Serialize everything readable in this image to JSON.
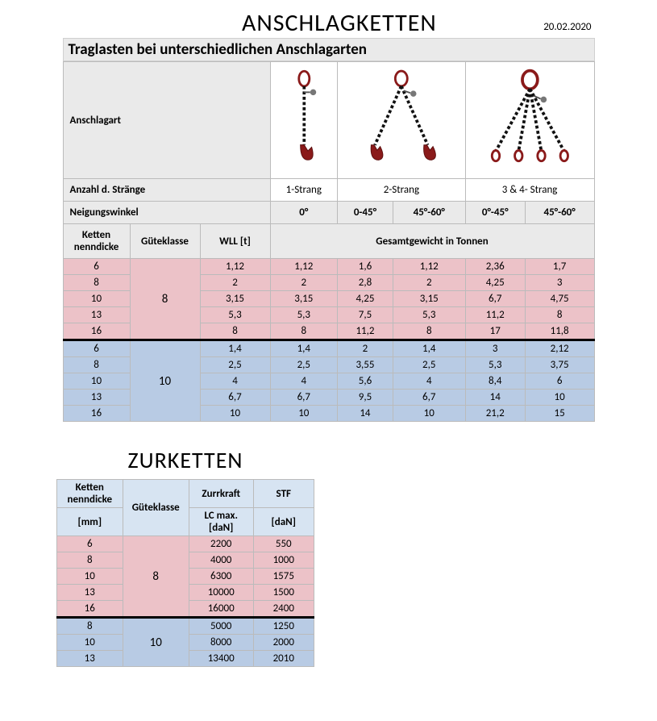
{
  "anschlag": {
    "title": "ANSCHLAGKETTEN",
    "date": "20.02.2020",
    "subtitle": "Traglasten bei unterschiedlichen Anschlagarten",
    "row_anschlagart": "Anschlagart",
    "row_strands": "Anzahl d. Stränge",
    "strands": [
      "1-Strang",
      "2-Strang",
      "3 & 4- Strang"
    ],
    "row_angle": "Neigungswinkel",
    "angles": [
      "0°",
      "0-45°",
      "45°-60°",
      "0°-45°",
      "45°-60°"
    ],
    "col_head": {
      "kette1": "Ketten",
      "kette2": "nenndicke",
      "gk": "Güteklasse",
      "wll": "WLL [t]",
      "gesamt": "Gesamtgewicht in Tonnen"
    },
    "group8": {
      "gk": "8",
      "rows": [
        {
          "d": "6",
          "wll": "1,12",
          "v": [
            "1,12",
            "1,6",
            "1,12",
            "2,36",
            "1,7"
          ]
        },
        {
          "d": "8",
          "wll": "2",
          "v": [
            "2",
            "2,8",
            "2",
            "4,25",
            "3"
          ]
        },
        {
          "d": "10",
          "wll": "3,15",
          "v": [
            "3,15",
            "4,25",
            "3,15",
            "6,7",
            "4,75"
          ]
        },
        {
          "d": "13",
          "wll": "5,3",
          "v": [
            "5,3",
            "7,5",
            "5,3",
            "11,2",
            "8"
          ]
        },
        {
          "d": "16",
          "wll": "8",
          "v": [
            "8",
            "11,2",
            "8",
            "17",
            "11,8"
          ]
        }
      ]
    },
    "group10": {
      "gk": "10",
      "rows": [
        {
          "d": "6",
          "wll": "1,4",
          "v": [
            "1,4",
            "2",
            "1,4",
            "3",
            "2,12"
          ]
        },
        {
          "d": "8",
          "wll": "2,5",
          "v": [
            "2,5",
            "3,55",
            "2,5",
            "5,3",
            "3,75"
          ]
        },
        {
          "d": "10",
          "wll": "4",
          "v": [
            "4",
            "5,6",
            "4",
            "8,4",
            "6"
          ]
        },
        {
          "d": "13",
          "wll": "6,7",
          "v": [
            "6,7",
            "9,5",
            "6,7",
            "14",
            "10"
          ]
        },
        {
          "d": "16",
          "wll": "10",
          "v": [
            "10",
            "14",
            "10",
            "21,2",
            "15"
          ]
        }
      ]
    },
    "colors": {
      "pink": "#ecc2c8",
      "blue": "#b8cbe4",
      "grey": "#eaeaea"
    }
  },
  "zurr": {
    "title": "ZURKETTEN",
    "col_head": {
      "kette1": "Ketten",
      "kette2": "nenndicke",
      "mm": "[mm]",
      "gk": "Güteklasse",
      "zurr": "Zurrkraft",
      "lc": "LC max. [daN]",
      "stf": "STF",
      "dan": "[daN]"
    },
    "group8": {
      "gk": "8",
      "rows": [
        {
          "d": "6",
          "lc": "2200",
          "stf": "550"
        },
        {
          "d": "8",
          "lc": "4000",
          "stf": "1000"
        },
        {
          "d": "10",
          "lc": "6300",
          "stf": "1575"
        },
        {
          "d": "13",
          "lc": "10000",
          "stf": "1500"
        },
        {
          "d": "16",
          "lc": "16000",
          "stf": "2400"
        }
      ]
    },
    "group10": {
      "gk": "10",
      "rows": [
        {
          "d": "8",
          "lc": "5000",
          "stf": "1250"
        },
        {
          "d": "10",
          "lc": "8000",
          "stf": "2000"
        },
        {
          "d": "13",
          "lc": "13400",
          "stf": "2010"
        }
      ]
    }
  }
}
